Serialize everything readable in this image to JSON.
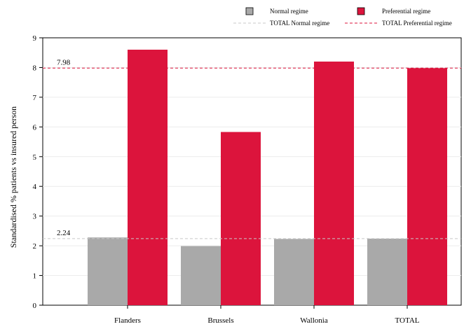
{
  "chart_data": {
    "type": "bar",
    "categories": [
      "Flanders",
      "Brussels",
      "Wallonia",
      "TOTAL"
    ],
    "series": [
      {
        "name": "Normal regime",
        "color": "#a9a9a9",
        "values": [
          2.28,
          1.99,
          2.23,
          2.24
        ]
      },
      {
        "name": "Preferential regime",
        "color": "#dc143c",
        "values": [
          8.6,
          5.83,
          8.2,
          7.98
        ]
      }
    ],
    "reference_lines": [
      {
        "name": "TOTAL Normal regime",
        "value": 2.24,
        "label": "2.24",
        "color": "#c8c8c8",
        "style": "dashed"
      },
      {
        "name": "TOTAL Preferential regime",
        "value": 7.98,
        "label": "7.98",
        "color": "#dc143c",
        "style": "dashed"
      }
    ],
    "ylabel": "Standardised % patients vs insured person",
    "xlabel": "",
    "ylim": [
      0,
      9
    ],
    "yticks": [
      0,
      1,
      2,
      3,
      4,
      5,
      6,
      7,
      8,
      9
    ],
    "grid": true,
    "legend_position": "top"
  }
}
